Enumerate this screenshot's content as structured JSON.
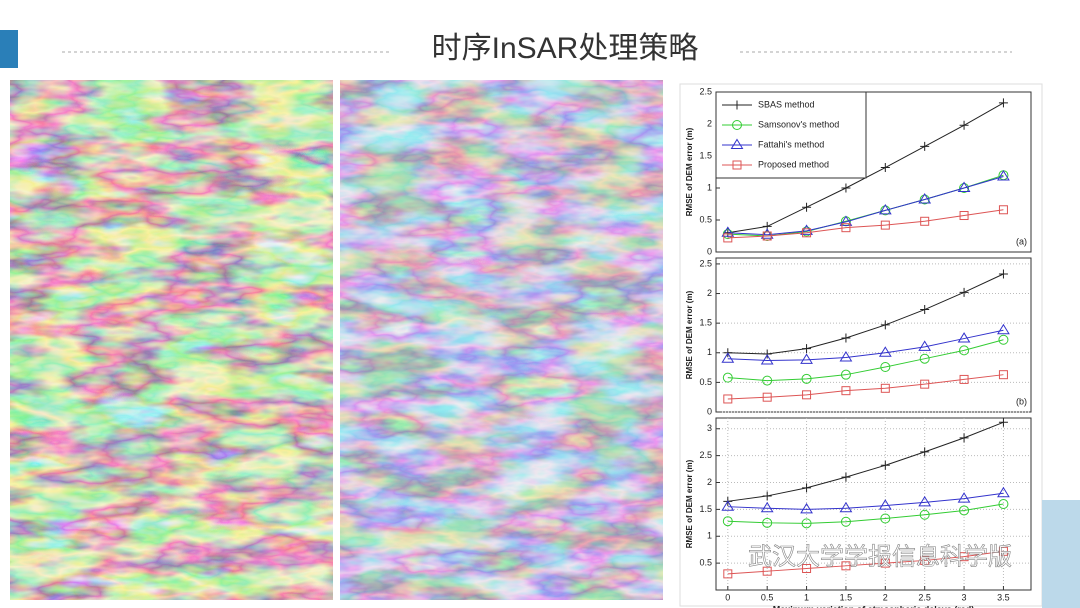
{
  "slide": {
    "title": "时序InSAR处理策略",
    "watermark": "武汉大学学报信息科学版"
  },
  "chart_data": [
    {
      "type": "line",
      "ylabel": "RMSE of DEM error (m)",
      "panel_label": "(a)",
      "legend": "upper left",
      "grid": false,
      "x": [
        0,
        0.5,
        1,
        1.5,
        2,
        2.5,
        3,
        3.5
      ],
      "xlim": [
        -0.15,
        3.85
      ],
      "ylim": [
        0,
        2.5
      ],
      "yticks": [
        0,
        0.5,
        1,
        1.5,
        2,
        2.5
      ],
      "series": [
        {
          "name": "SBAS method",
          "color": "#222222",
          "marker": "plus",
          "values": [
            0.3,
            0.4,
            0.7,
            1.0,
            1.32,
            1.65,
            1.98,
            2.33
          ]
        },
        {
          "name": "Samsonov's method",
          "color": "#33cc33",
          "marker": "circle",
          "values": [
            0.28,
            0.25,
            0.32,
            0.48,
            0.65,
            0.82,
            1.0,
            1.2
          ]
        },
        {
          "name": "Fattahi's method",
          "color": "#3333cc",
          "marker": "triangle",
          "values": [
            0.3,
            0.27,
            0.33,
            0.47,
            0.65,
            0.82,
            1.0,
            1.18
          ]
        },
        {
          "name": "Proposed method",
          "color": "#dd5555",
          "marker": "square",
          "values": [
            0.22,
            0.25,
            0.3,
            0.38,
            0.42,
            0.48,
            0.57,
            0.66
          ]
        }
      ]
    },
    {
      "type": "line",
      "ylabel": "RMSE of DEM error (m)",
      "panel_label": "(b)",
      "grid": true,
      "x": [
        0,
        0.5,
        1,
        1.5,
        2,
        2.5,
        3,
        3.5
      ],
      "xlim": [
        -0.15,
        3.85
      ],
      "ylim": [
        0,
        2.6
      ],
      "yticks": [
        0,
        0.5,
        1,
        1.5,
        2,
        2.5
      ],
      "series": [
        {
          "color": "#222222",
          "marker": "plus",
          "values": [
            1.0,
            0.98,
            1.07,
            1.25,
            1.47,
            1.73,
            2.02,
            2.33
          ]
        },
        {
          "color": "#33cc33",
          "marker": "circle",
          "values": [
            0.58,
            0.53,
            0.56,
            0.63,
            0.76,
            0.9,
            1.04,
            1.22
          ]
        },
        {
          "color": "#3333cc",
          "marker": "triangle",
          "values": [
            0.9,
            0.87,
            0.88,
            0.92,
            1.0,
            1.1,
            1.24,
            1.38
          ]
        },
        {
          "color": "#dd5555",
          "marker": "square",
          "values": [
            0.22,
            0.25,
            0.29,
            0.36,
            0.4,
            0.47,
            0.55,
            0.63
          ]
        }
      ]
    },
    {
      "type": "line",
      "ylabel": "RMSE of DEM error (m)",
      "xlabel": "Maximum variation of atmospheric delays (rad)",
      "grid": true,
      "x": [
        0,
        0.5,
        1,
        1.5,
        2,
        2.5,
        3,
        3.5
      ],
      "xlim": [
        -0.15,
        3.85
      ],
      "xticks": [
        0,
        0.5,
        1,
        1.5,
        2,
        2.5,
        3,
        3.5
      ],
      "ylim": [
        0,
        3.2
      ],
      "yticks": [
        0.5,
        1,
        1.5,
        2,
        2.5,
        3
      ],
      "series": [
        {
          "color": "#222222",
          "marker": "plus",
          "values": [
            1.65,
            1.75,
            1.9,
            2.1,
            2.32,
            2.57,
            2.83,
            3.12
          ]
        },
        {
          "color": "#33cc33",
          "marker": "circle",
          "values": [
            1.28,
            1.25,
            1.24,
            1.27,
            1.33,
            1.4,
            1.48,
            1.6
          ]
        },
        {
          "color": "#3333cc",
          "marker": "triangle",
          "values": [
            1.55,
            1.52,
            1.5,
            1.52,
            1.57,
            1.63,
            1.7,
            1.8
          ]
        },
        {
          "color": "#dd5555",
          "marker": "square",
          "values": [
            0.3,
            0.35,
            0.4,
            0.45,
            0.5,
            0.55,
            0.62,
            0.72
          ]
        }
      ]
    }
  ]
}
